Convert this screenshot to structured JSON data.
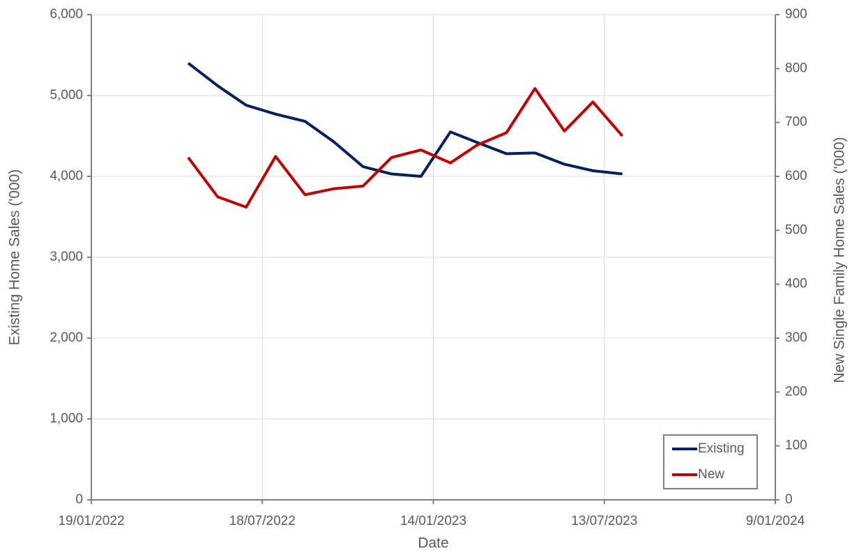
{
  "chart_data": {
    "type": "line",
    "x_label": "Date",
    "y_label": "Existing Home Sales ('000)",
    "y2_label": "New Single Family Home Sales ('000)",
    "x": [
      "2022-05-01",
      "2022-06-01",
      "2022-07-01",
      "2022-08-01",
      "2022-09-01",
      "2022-10-01",
      "2022-11-01",
      "2022-12-01",
      "2023-01-01",
      "2023-02-01",
      "2023-03-01",
      "2023-04-01",
      "2023-05-01",
      "2023-06-01",
      "2023-07-01",
      "2023-08-01"
    ],
    "series": [
      {
        "name": "Existing",
        "color": "#002060",
        "axis": "y",
        "values": [
          5400,
          5120,
          4880,
          4770,
          4680,
          4430,
          4120,
          4030,
          4000,
          4550,
          4420,
          4280,
          4290,
          4150,
          4070,
          4030
        ]
      },
      {
        "name": "New",
        "color": "#c00000",
        "axis": "y2",
        "values": [
          635,
          562,
          543,
          637,
          566,
          577,
          582,
          635,
          649,
          625,
          658,
          681,
          763,
          684,
          738,
          675
        ]
      }
    ],
    "xlim": [
      "2022-01-19",
      "2024-01-09"
    ],
    "xticks": [
      {
        "value": "2022-01-19",
        "label": "19/01/2022"
      },
      {
        "value": "2022-07-18",
        "label": "18/07/2022"
      },
      {
        "value": "2023-01-14",
        "label": "14/01/2023"
      },
      {
        "value": "2023-07-13",
        "label": "13/07/2023"
      },
      {
        "value": "2024-01-09",
        "label": "9/01/2024"
      }
    ],
    "ylim": [
      0,
      6000
    ],
    "yticks": [
      0,
      {
        "value": 1000,
        "label": "1,000"
      },
      {
        "value": 2000,
        "label": "2,000"
      },
      {
        "value": 3000,
        "label": "3,000"
      },
      {
        "value": 4000,
        "label": "4,000"
      },
      {
        "value": 5000,
        "label": "5,000"
      },
      {
        "value": 6000,
        "label": "6,000"
      }
    ],
    "y2lim": [
      0,
      900
    ],
    "y2ticks": [
      0,
      100,
      200,
      300,
      400,
      500,
      600,
      700,
      800,
      900
    ],
    "grid": true,
    "legend": "lower right"
  }
}
